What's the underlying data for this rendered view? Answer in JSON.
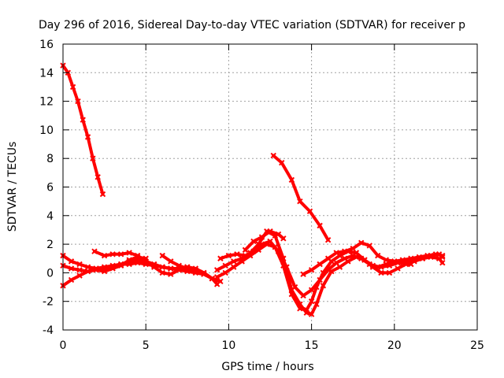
{
  "chart_data": {
    "type": "line",
    "title": "Day 296 of 2016, Sidereal Day-to-day VTEC variation (SDTVAR) for receiver p",
    "xlabel": "GPS time / hours",
    "ylabel": "SDTVAR / TECUs",
    "xlim": [
      0,
      25
    ],
    "ylim": [
      -4,
      16
    ],
    "xticks": [
      0,
      5,
      10,
      15,
      20,
      25
    ],
    "yticks": [
      -4,
      -2,
      0,
      2,
      4,
      6,
      8,
      10,
      12,
      14,
      16
    ],
    "grid": true,
    "series_color": "#ff0000",
    "series": [
      {
        "x": [
          0,
          0.3,
          0.6,
          0.9,
          1.2,
          1.5,
          1.8,
          2.1,
          2.4
        ],
        "y": [
          14.5,
          14.0,
          13.0,
          12.0,
          10.7,
          9.5,
          8.0,
          6.7,
          5.5
        ]
      },
      {
        "x": [
          12.7,
          13.2,
          13.8,
          14.3,
          14.9,
          15.5,
          16.0
        ],
        "y": [
          8.2,
          7.7,
          6.5,
          5.0,
          4.3,
          3.3,
          2.3
        ]
      },
      {
        "x": [
          0,
          0.5,
          1,
          1.5,
          2,
          2.5,
          3,
          3.5,
          4,
          4.5,
          5,
          5.5,
          6,
          6.5,
          7,
          7.5,
          8,
          8.5,
          9,
          9.3
        ],
        "y": [
          -0.9,
          -0.5,
          -0.2,
          0.1,
          0.3,
          0.4,
          0.5,
          0.6,
          0.6,
          0.7,
          0.6,
          0.5,
          0.4,
          0.3,
          0.2,
          0.1,
          0.0,
          -0.1,
          -0.4,
          -0.8
        ]
      },
      {
        "x": [
          0,
          0.5,
          1,
          1.5,
          2,
          2.5,
          3,
          3.5,
          4,
          4.5,
          5,
          5.5,
          6,
          6.5,
          7,
          7.5,
          8,
          8.5,
          9
        ],
        "y": [
          1.2,
          0.8,
          0.6,
          0.4,
          0.3,
          0.3,
          0.4,
          0.6,
          0.8,
          0.9,
          0.8,
          0.6,
          0.4,
          0.3,
          0.3,
          0.4,
          0.3,
          0.0,
          -0.4
        ]
      },
      {
        "x": [
          0,
          0.5,
          1,
          1.5,
          2,
          2.5,
          3,
          3.5,
          4,
          4.5,
          5
        ],
        "y": [
          0.5,
          0.3,
          0.2,
          0.1,
          0.2,
          0.1,
          0.3,
          0.5,
          0.9,
          1.1,
          1.0
        ]
      },
      {
        "x": [
          1.9,
          2.5,
          3,
          3.5,
          4,
          4.5,
          5,
          5.5,
          6,
          6.5,
          7,
          7.5,
          8
        ],
        "y": [
          1.5,
          1.2,
          1.3,
          1.3,
          1.4,
          1.2,
          0.8,
          0.4,
          0.0,
          -0.1,
          0.2,
          0.4,
          0.2
        ]
      },
      {
        "x": [
          6,
          6.5,
          7,
          7.5,
          8,
          8.5,
          9,
          9.5
        ],
        "y": [
          1.2,
          0.8,
          0.5,
          0.3,
          0.2,
          0.0,
          -0.4,
          -0.6
        ]
      },
      {
        "x": [
          9.3,
          9.8,
          10.3,
          10.8,
          11.3,
          11.8,
          12.3,
          12.8,
          13.3,
          13.8,
          14.3,
          14.7,
          15.0,
          15.3,
          15.7,
          16.2,
          16.7,
          17.2,
          17.7,
          18.2,
          18.7,
          19.2,
          19.7,
          20.2,
          20.7,
          21.2,
          21.7,
          22.2,
          22.7,
          22.9
        ],
        "y": [
          0.2,
          0.5,
          0.8,
          1.0,
          1.4,
          2.0,
          2.9,
          2.6,
          1.0,
          -1.2,
          -2.2,
          -2.8,
          -2.9,
          -2.2,
          -0.9,
          0.1,
          0.4,
          0.8,
          1.1,
          0.9,
          0.4,
          0.0,
          0.0,
          0.3,
          0.6,
          0.8,
          1.0,
          1.2,
          1.3,
          1.1
        ]
      },
      {
        "x": [
          9.3,
          9.8,
          10.3,
          10.8,
          11.3,
          11.8,
          12.3,
          12.8,
          13.3,
          13.8,
          14.3,
          14.7,
          15.0,
          15.3,
          15.7,
          16.2,
          16.7,
          17.2,
          17.7,
          18.2,
          18.7,
          19.2,
          19.7,
          20.2,
          20.7,
          21.2,
          21.7,
          22.2,
          22.7,
          22.9
        ],
        "y": [
          -0.3,
          0.0,
          0.4,
          0.8,
          1.2,
          1.6,
          2.0,
          1.8,
          0.5,
          -1.5,
          -2.5,
          -2.6,
          -2.0,
          -1.0,
          0.0,
          0.8,
          1.2,
          1.5,
          1.4,
          0.9,
          0.5,
          0.4,
          0.5,
          0.7,
          0.8,
          0.9,
          1.0,
          1.1,
          1.0,
          0.7
        ]
      },
      {
        "x": [
          9.5,
          10,
          10.5,
          11,
          11.5,
          12,
          12.5,
          13,
          13.5,
          14,
          14.5,
          15,
          15.5,
          16,
          16.5,
          17,
          17.5,
          18,
          18.5,
          19,
          19.5,
          20,
          20.5,
          21,
          21.5,
          22,
          22.5,
          22.9
        ],
        "y": [
          1.0,
          1.2,
          1.3,
          1.2,
          1.5,
          2.0,
          2.2,
          1.5,
          0.4,
          -1.0,
          -1.6,
          -1.2,
          -0.5,
          0.2,
          0.7,
          1.0,
          1.2,
          1.0,
          0.6,
          0.4,
          0.6,
          0.8,
          0.9,
          1.0,
          1.1,
          1.2,
          1.3,
          1.2
        ]
      },
      {
        "x": [
          14.5,
          15,
          15.5,
          16,
          16.5,
          17,
          17.5,
          18,
          18.5,
          19,
          19.5,
          20,
          20.5,
          21
        ],
        "y": [
          -0.1,
          0.2,
          0.6,
          1.0,
          1.4,
          1.5,
          1.7,
          2.1,
          1.9,
          1.2,
          0.9,
          0.8,
          0.7,
          0.6
        ]
      },
      {
        "x": [
          11,
          11.5,
          12,
          12.5,
          13,
          13.3
        ],
        "y": [
          1.6,
          2.2,
          2.5,
          2.9,
          2.7,
          2.4
        ]
      }
    ]
  }
}
